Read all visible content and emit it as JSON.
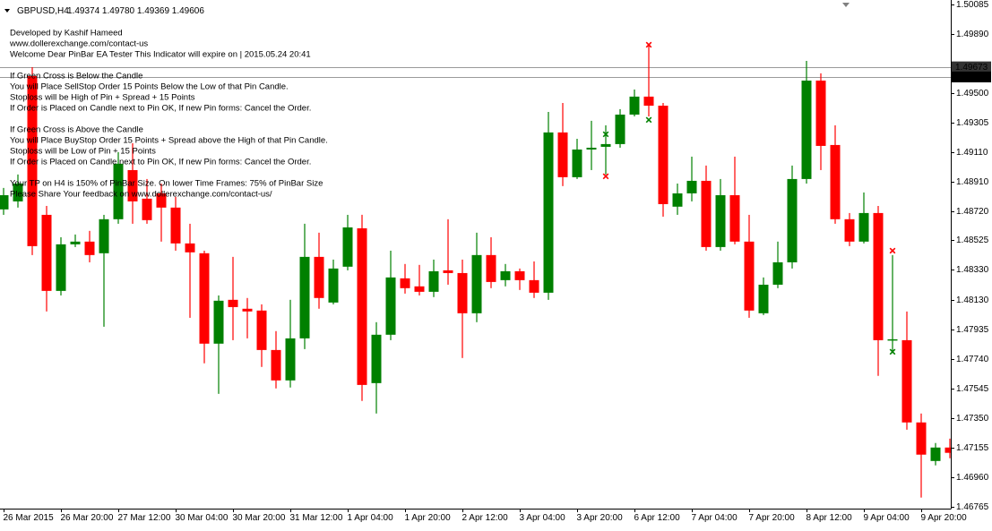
{
  "chart_data": {
    "type": "candlestick",
    "title": "GBPUSD,H4",
    "subtitle": "1.49374 1.49780 1.49369 1.49606",
    "annotations": [
      [
        "Developed by Kashif Hameed",
        "www.dollerexchange.com/contact-us",
        "Welcome Dear PinBar EA Tester This Indicator will expire on | 2015.05.24 20:41"
      ],
      [
        "If Green Cross is Below the Candle",
        "You will Place SellStop Order 15 Points Below the Low of that Pin Candle.",
        "Stoploss will be High of Pin + Spread + 15 Points",
        "If Order is Placed on Candle next to Pin OK, If new Pin forms: Cancel the Order."
      ],
      [
        "If Green Cross is Above the Candle",
        "You will Place BuyStop Order 15 Points + Spread above the High of that Pin Candle.",
        "Stoploss will be Low of Pin + 15 Points",
        "If Order is Placed on Candle next to Pin OK, If new Pin forms: Cancel the Order."
      ],
      [
        "Your TP on H4 is 150% of PinBar Size. On lower Time Frames: 75% of PinBar Size",
        "Please Share Your feedback on www.dollerexchange.com/contact-us/"
      ]
    ],
    "categories": [
      "26 Mar 2015",
      null,
      null,
      null,
      "26 Mar 20:00",
      null,
      null,
      null,
      "27 Mar 12:00",
      null,
      null,
      null,
      "30 Mar 04:00",
      null,
      null,
      null,
      "30 Mar 20:00",
      null,
      null,
      null,
      "31 Mar 12:00",
      null,
      null,
      null,
      "1 Apr 04:00",
      null,
      null,
      null,
      "1 Apr 20:00",
      null,
      null,
      null,
      "2 Apr 12:00",
      null,
      null,
      null,
      "3 Apr 04:00",
      null,
      null,
      null,
      "3 Apr 20:00",
      null,
      null,
      null,
      "6 Apr 12:00",
      null,
      null,
      null,
      "7 Apr 04:00",
      null,
      null,
      null,
      "7 Apr 20:00",
      null,
      null,
      null,
      "8 Apr 12:00",
      null,
      null,
      null,
      "9 Apr 04:00",
      null,
      null,
      null,
      "9 Apr 20:00",
      null,
      null
    ],
    "open": [
      1.4873,
      1.48783,
      1.49612,
      1.48694,
      1.48191,
      1.48499,
      1.48517,
      1.4844,
      1.48665,
      1.4899,
      1.48801,
      1.48836,
      1.48742,
      1.48505,
      1.4844,
      1.47842,
      1.48132,
      1.48073,
      1.48061,
      1.478,
      1.47599,
      1.47877,
      1.48416,
      1.48114,
      1.48351,
      1.48605,
      1.47581,
      1.47901,
      1.48274,
      1.48221,
      1.48185,
      1.48327,
      1.48309,
      1.48043,
      1.48428,
      1.48262,
      1.48321,
      1.48262,
      1.48179,
      1.49239,
      1.48943,
      1.49126,
      1.49144,
      1.49162,
      1.49357,
      1.49476,
      1.49416,
      1.48748,
      1.48836,
      1.48919,
      1.48481,
      1.48824,
      1.48517,
      1.48043,
      1.48232,
      1.4838,
      1.48931,
      1.49582,
      1.49156,
      1.48665,
      1.48517,
      1.48706,
      1.47865,
      1.47865,
      1.47321,
      1.47066,
      1.47155
    ],
    "high": [
      1.48872,
      1.48961,
      1.49671,
      1.48753,
      1.48546,
      1.48564,
      1.48588,
      1.48694,
      1.49109,
      1.49168,
      1.48931,
      1.48901,
      1.48813,
      1.48635,
      1.48457,
      1.48161,
      1.48416,
      1.48144,
      1.48102,
      1.47925,
      1.48132,
      1.48635,
      1.48576,
      1.48398,
      1.48694,
      1.48694,
      1.47984,
      1.48457,
      1.48369,
      1.48363,
      1.48398,
      1.48665,
      1.48398,
      1.48576,
      1.48546,
      1.48369,
      1.48339,
      1.48386,
      1.49375,
      1.49434,
      1.49197,
      1.49316,
      1.49286,
      1.49393,
      1.49523,
      1.49819,
      1.49434,
      1.48901,
      1.49079,
      1.4902,
      1.48931,
      1.49079,
      1.48694,
      1.4828,
      1.48517,
      1.4902,
      1.49712,
      1.4963,
      1.49286,
      1.48706,
      1.48842,
      1.48753,
      1.48428,
      1.48055,
      1.4738,
      1.47185,
      1.47214
    ],
    "low": [
      1.48694,
      1.48742,
      1.48428,
      1.48055,
      1.48161,
      1.48481,
      1.4838,
      1.47954,
      1.48635,
      1.48635,
      1.48635,
      1.48517,
      1.48457,
      1.48013,
      1.47712,
      1.4751,
      1.47865,
      1.47877,
      1.47688,
      1.47546,
      1.47552,
      1.47806,
      1.48073,
      1.48102,
      1.48327,
      1.47463,
      1.4738,
      1.47865,
      1.48173,
      1.48161,
      1.4815,
      1.48232,
      1.47747,
      1.47984,
      1.48209,
      1.48221,
      1.48197,
      1.48144,
      1.48132,
      1.48884,
      1.48931,
      1.4899,
      1.48961,
      1.49138,
      1.49345,
      1.49345,
      1.48682,
      1.48694,
      1.48783,
      1.48457,
      1.48457,
      1.48499,
      1.48013,
      1.48031,
      1.48209,
      1.48339,
      1.48901,
      1.4899,
      1.48635,
      1.48487,
      1.48505,
      1.47629,
      1.47794,
      1.47273,
      1.46824,
      1.47037,
      1.47084
    ],
    "close": [
      1.48824,
      1.48901,
      1.48487,
      1.48191,
      1.48499,
      1.48517,
      1.48428,
      1.48665,
      1.49032,
      1.48783,
      1.48659,
      1.48742,
      1.48505,
      1.48446,
      1.47842,
      1.48126,
      1.48084,
      1.48055,
      1.478,
      1.47599,
      1.47877,
      1.48416,
      1.48144,
      1.48339,
      1.48611,
      1.47569,
      1.47901,
      1.4828,
      1.48209,
      1.48185,
      1.48321,
      1.48309,
      1.48043,
      1.48428,
      1.4825,
      1.48321,
      1.48262,
      1.48179,
      1.49239,
      1.48943,
      1.49126,
      1.49138,
      1.49162,
      1.49357,
      1.49476,
      1.49416,
      1.48765,
      1.48836,
      1.48919,
      1.48481,
      1.48824,
      1.48517,
      1.48061,
      1.48232,
      1.4838,
      1.48931,
      1.49582,
      1.4915,
      1.48665,
      1.48517,
      1.48706,
      1.47865,
      1.47871,
      1.47321,
      1.47108,
      1.47155,
      1.4712
    ],
    "up_color": "#008000",
    "down_color": "#ff0000",
    "signals": [
      {
        "color": "#008000",
        "values": [
          null,
          null,
          null,
          null,
          null,
          null,
          null,
          null,
          null,
          null,
          null,
          null,
          null,
          null,
          null,
          null,
          null,
          null,
          null,
          null,
          null,
          null,
          null,
          null,
          null,
          null,
          null,
          null,
          null,
          null,
          null,
          null,
          null,
          null,
          null,
          null,
          null,
          null,
          null,
          null,
          null,
          null,
          1.49227,
          null,
          null,
          1.49322,
          null,
          null,
          null,
          null,
          null,
          null,
          null,
          null,
          null,
          null,
          null,
          null,
          null,
          null,
          null,
          null,
          1.47788,
          null,
          null,
          null,
          null
        ]
      },
      {
        "color": "#ff0000",
        "values": [
          null,
          null,
          null,
          null,
          null,
          null,
          null,
          null,
          null,
          null,
          null,
          null,
          null,
          null,
          null,
          null,
          null,
          null,
          null,
          null,
          null,
          null,
          null,
          null,
          null,
          null,
          null,
          null,
          null,
          null,
          null,
          null,
          null,
          null,
          null,
          null,
          null,
          null,
          null,
          null,
          null,
          null,
          1.48949,
          null,
          null,
          1.49819,
          null,
          null,
          null,
          null,
          null,
          null,
          null,
          null,
          null,
          null,
          null,
          null,
          null,
          null,
          null,
          null,
          1.48457,
          null,
          null,
          null,
          null
        ]
      }
    ],
    "price_lines": [
      1.49673,
      1.49606
    ],
    "ylim": [
      1.46751,
      1.50115
    ],
    "yticks": [
      1.50085,
      {
        "value": 1.4989,
        "label": "1.49890"
      },
      {
        "value": 1.495,
        "label": "1.49500"
      },
      1.49305,
      {
        "value": 1.4911,
        "label": "1.49110"
      },
      {
        "value": 1.4891,
        "label": "1.48910"
      },
      {
        "value": 1.4872,
        "label": "1.48720"
      },
      1.48525,
      {
        "value": 1.4833,
        "label": "1.48330"
      },
      {
        "value": 1.4813,
        "label": "1.48130"
      },
      1.47935,
      {
        "value": 1.4774,
        "label": "1.47740"
      },
      1.47545,
      {
        "value": 1.4735,
        "label": "1.47350"
      },
      1.47155,
      {
        "value": 1.4696,
        "label": "1.46960"
      },
      1.46765
    ],
    "grid": false
  }
}
